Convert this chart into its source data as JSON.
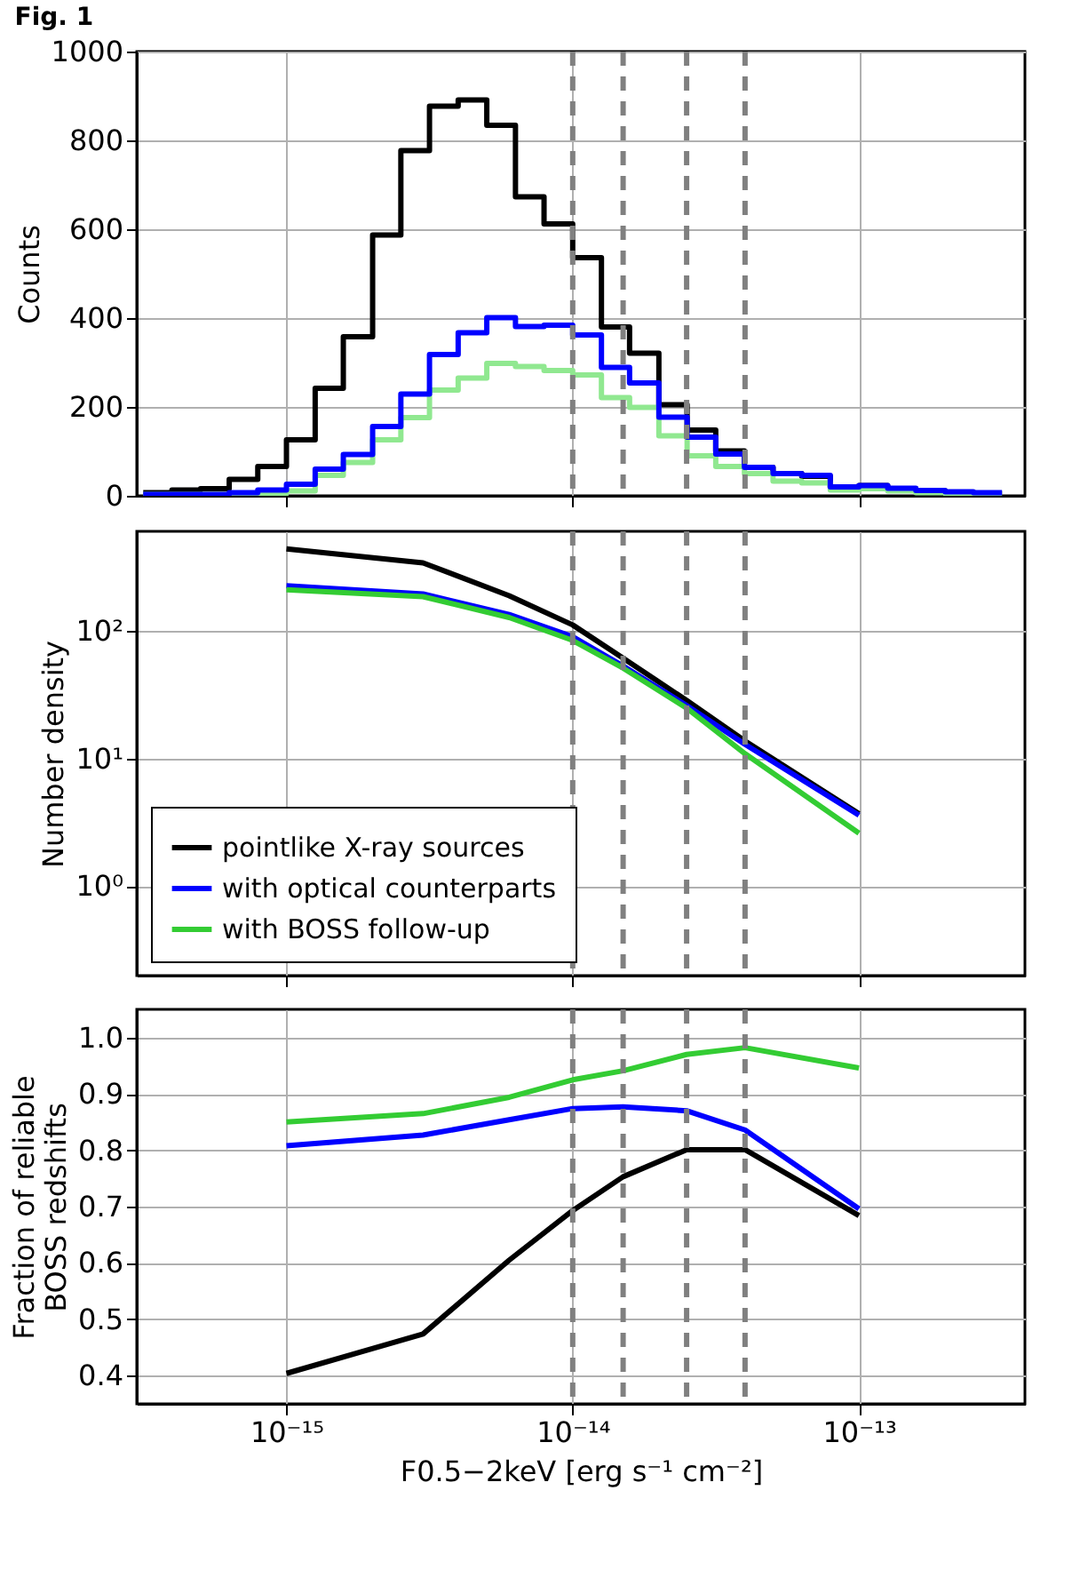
{
  "chart_data": [
    {
      "type": "histogram",
      "title": "Fig. 1",
      "ylabel": "Counts",
      "tick_labels": "y",
      "grid": true,
      "log": "x",
      "bins": [
        3.16e-16,
        3.98e-16,
        5.01e-16,
        6.31e-16,
        7.94e-16,
        1e-15,
        1.26e-15,
        1.58e-15,
        2e-15,
        2.51e-15,
        3.16e-15,
        3.98e-15,
        5.01e-15,
        6.31e-15,
        7.94e-15,
        1e-14,
        1.26e-14,
        1.58e-14,
        2e-14,
        2.51e-14,
        3.16e-14,
        3.98e-14,
        5.01e-14,
        6.31e-14,
        7.94e-14,
        1e-13,
        1.26e-13,
        1.58e-13,
        2e-13,
        2.51e-13,
        3.16e-13
      ],
      "series": [
        {
          "color": "#000000",
          "values": [
            7,
            13,
            16,
            37,
            66,
            126,
            242,
            358,
            587,
            777,
            877,
            891,
            834,
            673,
            612,
            536,
            380,
            321,
            205,
            148,
            101,
            64,
            50,
            44,
            19,
            23,
            16,
            11,
            8,
            5
          ]
        },
        {
          "color": "#90e890",
          "values": [
            3,
            3,
            3,
            3,
            5,
            11,
            46,
            75,
            126,
            176,
            238,
            265,
            298,
            291,
            282,
            272,
            221,
            199,
            135,
            90,
            66,
            50,
            33,
            29,
            13,
            16,
            11,
            7,
            5,
            4
          ]
        },
        {
          "color": "#0000ff",
          "values": [
            3,
            3,
            3,
            7,
            13,
            26,
            60,
            93,
            156,
            229,
            318,
            367,
            401,
            381,
            384,
            362,
            289,
            254,
            177,
            132,
            94,
            64,
            50,
            46,
            20,
            23,
            17,
            12,
            9,
            7
          ]
        }
      ],
      "xlim": [
        3e-16,
        3.8e-13
      ],
      "xticks": [
        {
          "value": 1e-15,
          "label": null
        },
        {
          "value": 1e-14,
          "label": null
        },
        {
          "value": 1e-13,
          "label": null
        }
      ],
      "ylim": [
        0,
        1000
      ],
      "yticks": [
        0,
        200,
        400,
        600,
        800,
        1000
      ],
      "ref_lines": [
        {
          "axis": "x",
          "value": 1e-14,
          "color": "#808080",
          "line_style": "dashed"
        },
        {
          "axis": "x",
          "value": 1.5e-14,
          "color": "#808080",
          "line_style": "dashed"
        },
        {
          "axis": "x",
          "value": 2.5e-14,
          "color": "#808080",
          "line_style": "dashed"
        },
        {
          "axis": "x",
          "value": 4e-14,
          "color": "#808080",
          "line_style": "dashed"
        }
      ]
    },
    {
      "type": "line",
      "ylabel": "Number density",
      "tick_labels": "y",
      "grid": true,
      "log": "xy",
      "legend": "bottom left",
      "x": [
        1e-15,
        3e-15,
        6e-15,
        1e-14,
        1.5e-14,
        2.5e-14,
        4e-14,
        1e-13
      ],
      "series": [
        {
          "name": "pointlike X-ray sources",
          "color": "#000000",
          "values": [
            438,
            340,
            188,
            111,
            61,
            28.5,
            13.7,
            3.7
          ]
        },
        {
          "name": "with optical counterparts",
          "color": "#0000ff",
          "values": [
            225,
            194,
            134,
            90,
            53,
            26,
            12.9,
            3.6
          ]
        },
        {
          "name": "with BOSS follow-up",
          "color": "#33cc33",
          "values": [
            209,
            185,
            127,
            84,
            51,
            24.8,
            10.9,
            2.6
          ]
        }
      ],
      "xlim": [
        3e-16,
        3.8e-13
      ],
      "xticks": [
        {
          "value": 1e-15,
          "label": null
        },
        {
          "value": 1e-14,
          "label": null
        },
        {
          "value": 1e-13,
          "label": null
        }
      ],
      "ylim": [
        0.2,
        600
      ],
      "yticks": [
        {
          "value": 1,
          "label": "10⁰"
        },
        {
          "value": 10,
          "label": "10¹"
        },
        {
          "value": 100,
          "label": "10²"
        }
      ],
      "ref_lines": [
        {
          "axis": "x",
          "value": 1e-14,
          "color": "#808080",
          "line_style": "dashed"
        },
        {
          "axis": "x",
          "value": 1.5e-14,
          "color": "#808080",
          "line_style": "dashed"
        },
        {
          "axis": "x",
          "value": 2.5e-14,
          "color": "#808080",
          "line_style": "dashed"
        },
        {
          "axis": "x",
          "value": 4e-14,
          "color": "#808080",
          "line_style": "dashed"
        }
      ]
    },
    {
      "type": "line",
      "ylabel": "Fraction of reliable\nBOSS redshifts",
      "xlabel": "F0.5−2keV [erg s⁻¹ cm⁻²]",
      "grid": true,
      "log": "x",
      "x": [
        1e-15,
        3e-15,
        6e-15,
        1e-14,
        1.5e-14,
        2.5e-14,
        4e-14,
        1e-13
      ],
      "series": [
        {
          "color": "#000000",
          "values": [
            0.404,
            0.474,
            0.605,
            0.693,
            0.753,
            0.801,
            0.801,
            0.684
          ]
        },
        {
          "color": "#0000ff",
          "values": [
            0.808,
            0.827,
            0.854,
            0.874,
            0.877,
            0.87,
            0.836,
            0.696
          ]
        },
        {
          "color": "#33cc33",
          "values": [
            0.85,
            0.865,
            0.894,
            0.925,
            0.941,
            0.97,
            0.982,
            0.946
          ]
        }
      ],
      "xlim": [
        3e-16,
        3.8e-13
      ],
      "xticks": [
        {
          "value": 1e-15,
          "label": "10⁻¹⁵"
        },
        {
          "value": 1e-14,
          "label": "10⁻¹⁴"
        },
        {
          "value": 1e-13,
          "label": "10⁻¹³"
        }
      ],
      "ylim": [
        0.35,
        1.05
      ],
      "yticks": [
        0.4,
        0.5,
        0.6,
        0.7,
        0.8,
        0.9,
        {
          "value": 1.0,
          "label": "1.0"
        }
      ],
      "ref_lines": [
        {
          "axis": "x",
          "value": 1e-14,
          "color": "#808080",
          "line_style": "dashed"
        },
        {
          "axis": "x",
          "value": 1.5e-14,
          "color": "#808080",
          "line_style": "dashed"
        },
        {
          "axis": "x",
          "value": 2.5e-14,
          "color": "#808080",
          "line_style": "dashed"
        },
        {
          "axis": "x",
          "value": 4e-14,
          "color": "#808080",
          "line_style": "dashed"
        }
      ]
    }
  ]
}
